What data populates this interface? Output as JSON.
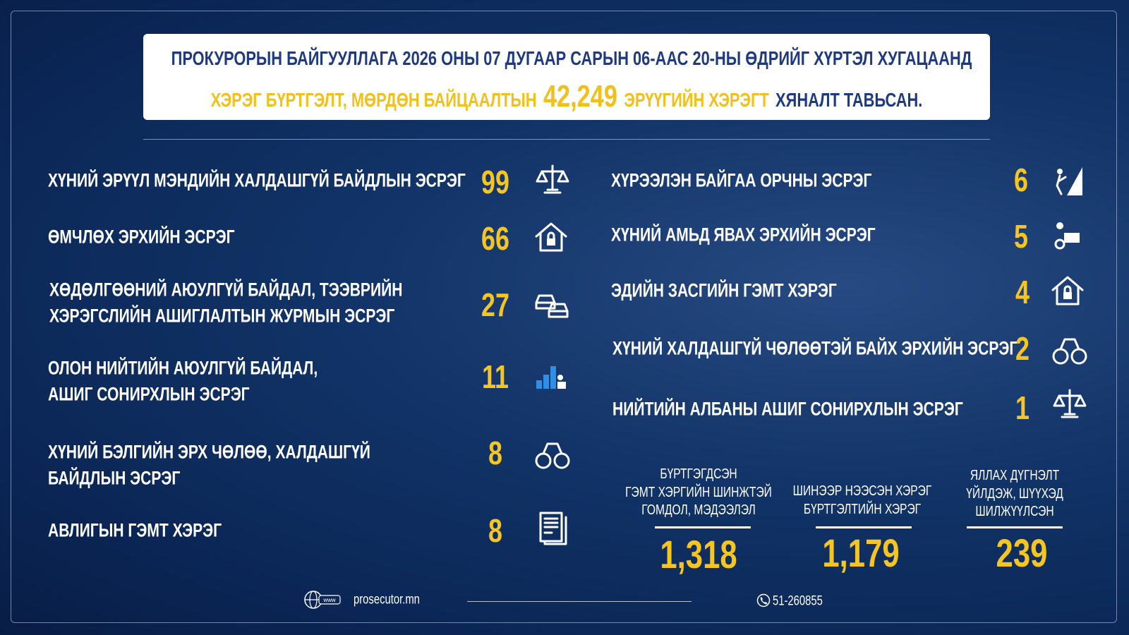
{
  "header": {
    "line1": "ПРОКУРОРЫН БАЙГУУЛЛАГА 2026 ОНЫ 07 ДУГААР САРЫН 06-ААС 20-НЫ ӨДРИЙГ ХҮРТЭЛ ХУГАЦААНД",
    "line2_prefix": "ХЭРЭГ БҮРТГЭЛТ, МӨРДӨН БАЙЦААЛТЫН",
    "total": "42,249",
    "line2_highlight": "ЭРҮҮГИЙН ХЭРЭГТ",
    "line2_suffix": "ХЯНАЛТ ТАВЬСАН."
  },
  "left_items": [
    {
      "label": [
        "ХҮНИЙ ЭРҮҮЛ МЭНДИЙН ХАЛДАШГҮЙ БАЙДЛЫН ЭСРЭГ"
      ],
      "value": 99
    },
    {
      "label": [
        "ӨМЧЛӨХ ЭРХИЙН ЭСРЭГ"
      ],
      "value": 66
    },
    {
      "label": [
        "ХӨДӨЛГӨӨНИЙ АЮУЛГҮЙ БАЙДАЛ, ТЭЭВРИЙН",
        "ХЭРЭГСЛИЙН АШИГЛАЛТЫН ЖУРМЫН ЭСРЭГ"
      ],
      "value": 27
    },
    {
      "label": [
        "ОЛОН НИЙТИЙН АЮУЛГҮЙ БАЙДАЛ,",
        "АШИГ СОНИРХЛЫН ЭСРЭГ"
      ],
      "value": 11
    },
    {
      "label": [
        "ХҮНИЙ БЭЛГИЙН ЭРХ ЧӨЛӨӨ, ХАЛДАШГҮЙ",
        "БАЙДЛЫН ЭСРЭГ"
      ],
      "value": 8
    },
    {
      "label": [
        "АВЛИГЫН ГЭМТ ХЭРЭГ"
      ],
      "value": 8
    }
  ],
  "right_items": [
    {
      "label": [
        "ХҮРЭЭЛЭН БАЙГАА ОРЧНЫ ЭСРЭГ"
      ],
      "value": 6
    },
    {
      "label": [
        "ХҮНИЙ АМЬД ЯВАХ ЭРХИЙН ЭСРЭГ"
      ],
      "value": 5
    },
    {
      "label": [
        "ЭДИЙН ЗАСГИЙН ГЭМТ ХЭРЭГ"
      ],
      "value": 4
    },
    {
      "label": [
        "ХҮНИЙ ХАЛДАШГҮЙ ЧӨЛӨӨТЭЙ БАЙХ ЭРХИЙН ЭСРЭГ"
      ],
      "value": 2
    },
    {
      "label": [
        "НИЙТИЙН АЛБАНЫ АШИГ СОНИРХЛЫН ЭСРЭГ"
      ],
      "value": 1
    }
  ],
  "stats": [
    {
      "label": [
        "БҮРТГЭГДСЭН",
        "ГЭМТ ХЭРГИЙН ШИНЖТЭЙ",
        "ГОМДОЛ, МЭДЭЭЛЭЛ"
      ],
      "value": "1,318"
    },
    {
      "label": [
        "ШИНЭЭР НЭЭСЭН ХЭРЭГ",
        "БҮРТГЭЛТИЙН ХЭРЭГ"
      ],
      "value": "1,179"
    },
    {
      "label": [
        "ЯЛЛАХ ДҮГНЭЛТ",
        "ҮЙЛДЭЖ, ШҮҮХЭД",
        "ШИЛЖҮҮЛСЭН"
      ],
      "value": "239"
    }
  ],
  "footer": {
    "web_icon": "www",
    "website": "prosecutor.mn",
    "phone": "51-260855"
  }
}
